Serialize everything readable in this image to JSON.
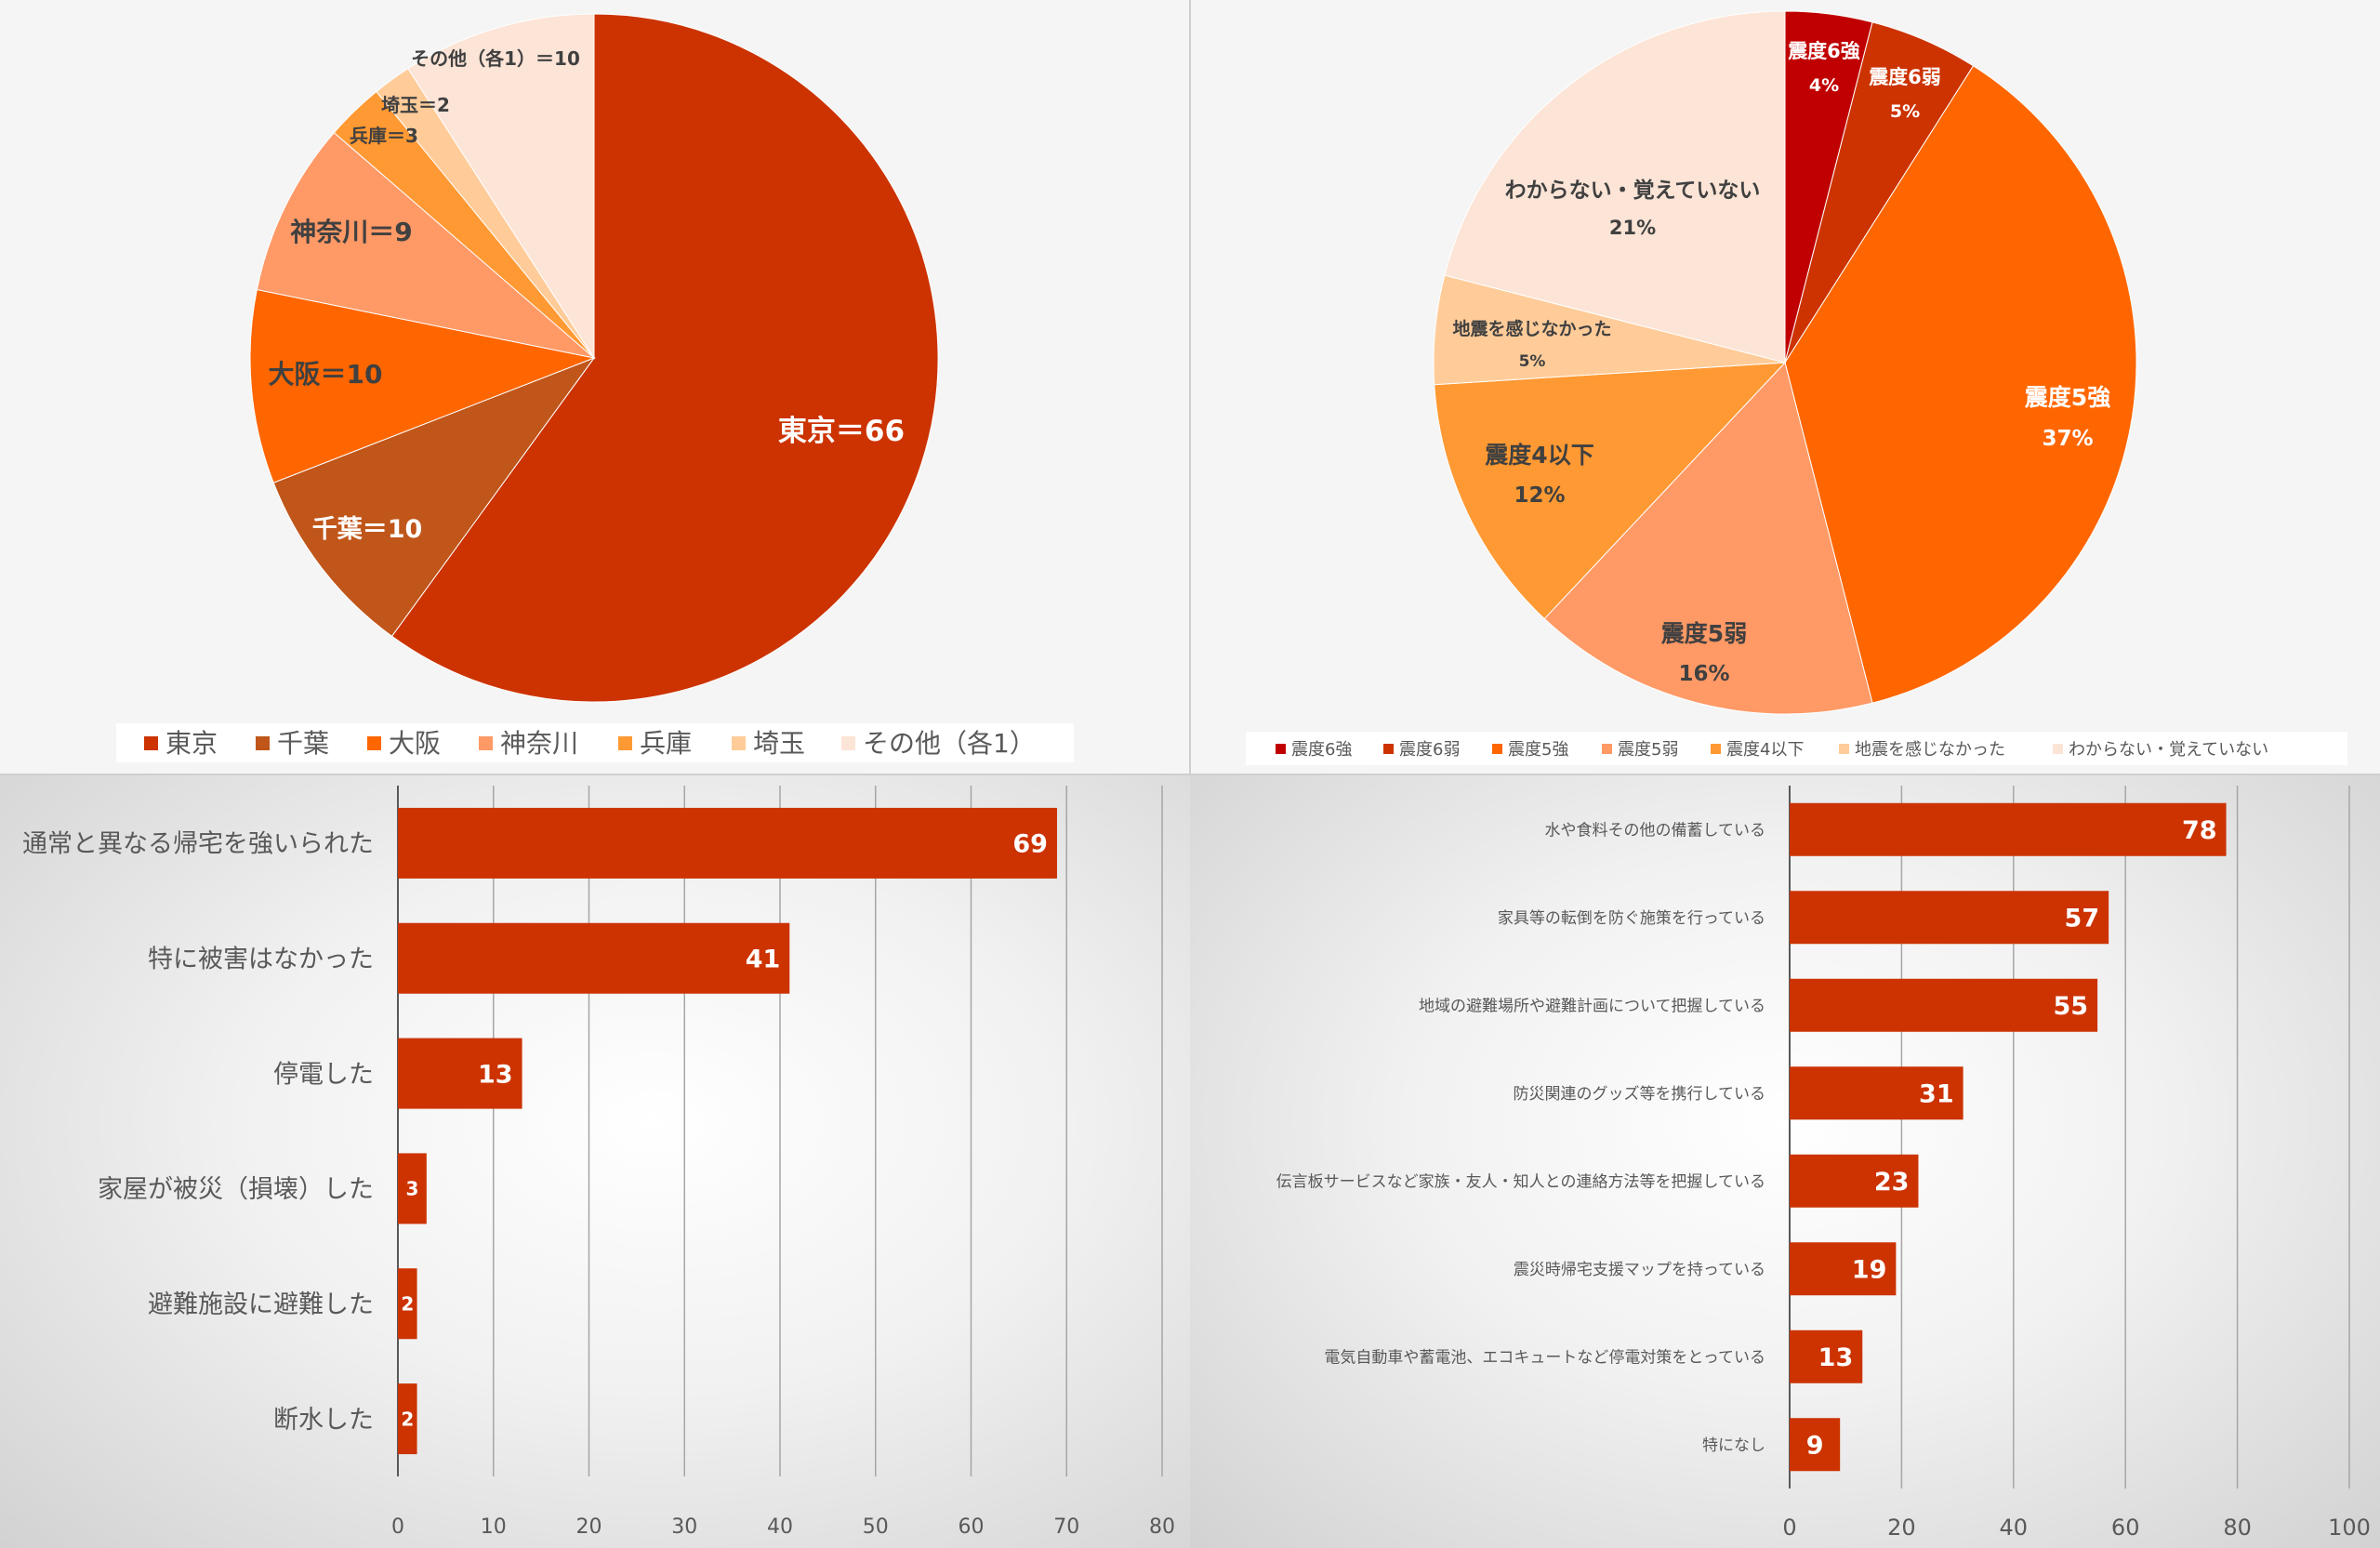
{
  "chart_data": [
    {
      "type": "pie",
      "series": [
        {
          "label": "東京",
          "value": 66,
          "color": "#cc3300",
          "data_label": "東京＝66"
        },
        {
          "label": "千葉",
          "value": 10,
          "color": "#c0561a",
          "data_label": "千葉＝10"
        },
        {
          "label": "大阪",
          "value": 10,
          "color": "#ff6600",
          "data_label": "大阪＝10"
        },
        {
          "label": "神奈川",
          "value": 9,
          "color": "#ff9966",
          "data_label": "神奈川＝9"
        },
        {
          "label": "兵庫",
          "value": 3,
          "color": "#ff9933",
          "data_label": "兵庫＝3"
        },
        {
          "label": "埼玉",
          "value": 2,
          "color": "#ffcc99",
          "data_label": "埼玉＝2"
        },
        {
          "label": "その他（各1）",
          "value": 10,
          "color": "#fce4d6",
          "data_label": "その他（各1）＝10"
        }
      ],
      "legend": "bottom"
    },
    {
      "type": "pie",
      "series": [
        {
          "label": "震度6強",
          "value": 4,
          "color": "#c00000",
          "data_label": "震度6強",
          "pct_label": "4%"
        },
        {
          "label": "震度6弱",
          "value": 5,
          "color": "#cc3300",
          "data_label": "震度6弱",
          "pct_label": "5%"
        },
        {
          "label": "震度5強",
          "value": 37,
          "color": "#ff6600",
          "data_label": "震度5強",
          "pct_label": "37%"
        },
        {
          "label": "震度5弱",
          "value": 16,
          "color": "#ff9966",
          "data_label": "震度5弱",
          "pct_label": "16%"
        },
        {
          "label": "震度4以下",
          "value": 12,
          "color": "#ff9933",
          "data_label": "震度4以下",
          "pct_label": "12%"
        },
        {
          "label": "地震を感じなかった",
          "value": 5,
          "color": "#ffcc99",
          "data_label": "地震を感じなかった",
          "pct_label": "5%"
        },
        {
          "label": "わからない・覚えていない",
          "value": 21,
          "color": "#fce4d6",
          "data_label": "わからない・覚えていない",
          "pct_label": "21%"
        }
      ],
      "legend": "bottom"
    },
    {
      "type": "bar",
      "orientation": "horizontal",
      "categories": [
        "通常と異なる帰宅を強いられた",
        "特に被害はなかった",
        "停電した",
        "家屋が被災（損壊）した",
        "避難施設に避難した",
        "断水した"
      ],
      "values": [
        69,
        41,
        13,
        3,
        2,
        2
      ],
      "xlim": [
        0,
        80
      ],
      "xticks": [
        "0",
        "10",
        "20",
        "30",
        "40",
        "50",
        "60",
        "70",
        "80"
      ],
      "bar_color": "#cc3300",
      "grid": true
    },
    {
      "type": "bar",
      "orientation": "horizontal",
      "categories": [
        "水や食料その他の備蓄している",
        "家具等の転倒を防ぐ施策を行っている",
        "地域の避難場所や避難計画について把握している",
        "防災関連のグッズ等を携行している",
        "伝言板サービスなど家族・友人・知人との連絡方法等を把握している",
        "震災時帰宅支援マップを持っている",
        "電気自動車や蓄電池、エコキュートなど停電対策をとっている",
        "特になし"
      ],
      "values": [
        78,
        57,
        55,
        31,
        23,
        19,
        13,
        9
      ],
      "xlim": [
        0,
        100
      ],
      "xticks": [
        "0",
        "20",
        "40",
        "60",
        "80",
        "100"
      ],
      "bar_color": "#cc3300",
      "grid": true
    }
  ]
}
